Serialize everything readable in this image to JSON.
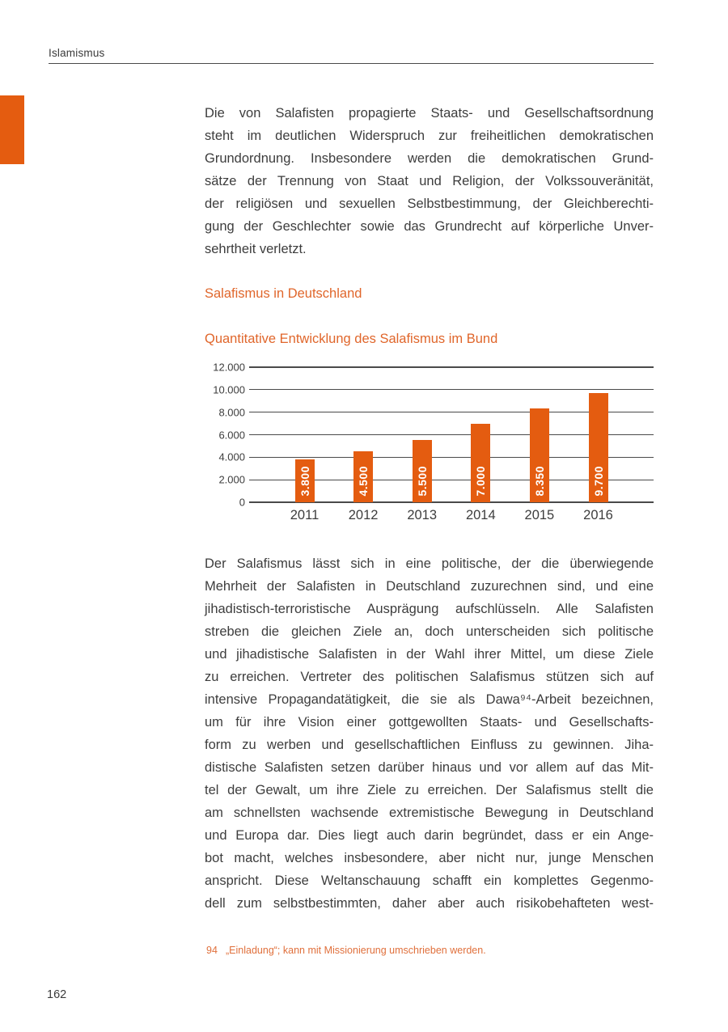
{
  "page": {
    "header_label": "Islamismus",
    "page_number": "162"
  },
  "colors": {
    "accent": "#E45C10",
    "heading": "#E0662B",
    "footnote": "#E0703C",
    "text": "#3D3D3D",
    "grid": "#4A4A4A"
  },
  "content": {
    "paragraph1_lines": [
      "Die von Salafisten propagierte Staats- und Gesellschaftsordnung",
      "steht im deutlichen Widerspruch zur freiheitlichen demokratischen",
      "Grundordnung. Insbesondere werden die demokratischen Grund-",
      "sätze der Trennung von Staat und Religion, der Volkssouveränität,",
      "der religiösen und sexuellen Selbstbestimmung, der Gleichberechti-",
      "gung der Geschlechter sowie das Grundrecht auf körperliche Unver-",
      "sehrtheit verletzt."
    ],
    "heading1": "Salafismus in Deutschland",
    "heading2": "Quantitative Entwicklung des Salafismus im Bund",
    "paragraph2_lines": [
      "Der Salafismus lässt sich in eine politische, der die überwiegende",
      "Mehrheit der Salafisten in Deutschland zuzurechnen sind, und eine",
      "jihadistisch-terroristische Ausprägung aufschlüsseln. Alle Salafisten",
      "streben die gleichen Ziele an, doch unterscheiden sich politische",
      "und jihadistische Salafisten in der Wahl ihrer Mittel, um diese Ziele",
      "zu erreichen. Vertreter des politischen Salafismus stützen sich auf",
      "intensive Propagandatätigkeit, die sie als Dawa⁹⁴-Arbeit bezeichnen,",
      "um für ihre Vision einer gottgewollten Staats- und Gesellschafts-",
      "form zu werben und gesellschaftlichen Einfluss zu gewinnen. Jiha-",
      "distische Salafisten setzen darüber hinaus und vor allem auf das Mit-",
      "tel der Gewalt, um ihre Ziele zu erreichen. Der Salafismus stellt die",
      "am schnellsten wachsende extremistische Bewegung in Deutschland",
      "und Europa dar. Dies liegt auch darin begründet, dass er ein Ange-",
      "bot macht, welches insbesondere, aber nicht nur, junge Menschen",
      "anspricht. Diese Weltanschauung schafft ein komplettes Gegenmo-",
      "dell zum selbstbestimmten, daher aber auch risikobehafteten west-"
    ],
    "footnote": {
      "number": "94",
      "text": "„Einladung“; kann mit Missionierung umschrieben werden."
    }
  },
  "chart_data": {
    "type": "bar",
    "title": "Quantitative Entwicklung des Salafismus im Bund",
    "categories": [
      "2011",
      "2012",
      "2013",
      "2014",
      "2015",
      "2016"
    ],
    "values": [
      3800,
      4500,
      5500,
      7000,
      8350,
      9700
    ],
    "bar_labels": [
      "3.800",
      "4.500",
      "5.500",
      "7.000",
      "8.350",
      "9.700"
    ],
    "y_ticks": [
      "12.000",
      "10.000",
      "8.000",
      "6.000",
      "4.000",
      "2.000",
      "0"
    ],
    "xlabel": "",
    "ylabel": "",
    "ylim": [
      0,
      12000
    ],
    "grid": true,
    "legend": "none",
    "bar_color": "#E45C10",
    "bar_label_color": "#FFFFFF"
  }
}
